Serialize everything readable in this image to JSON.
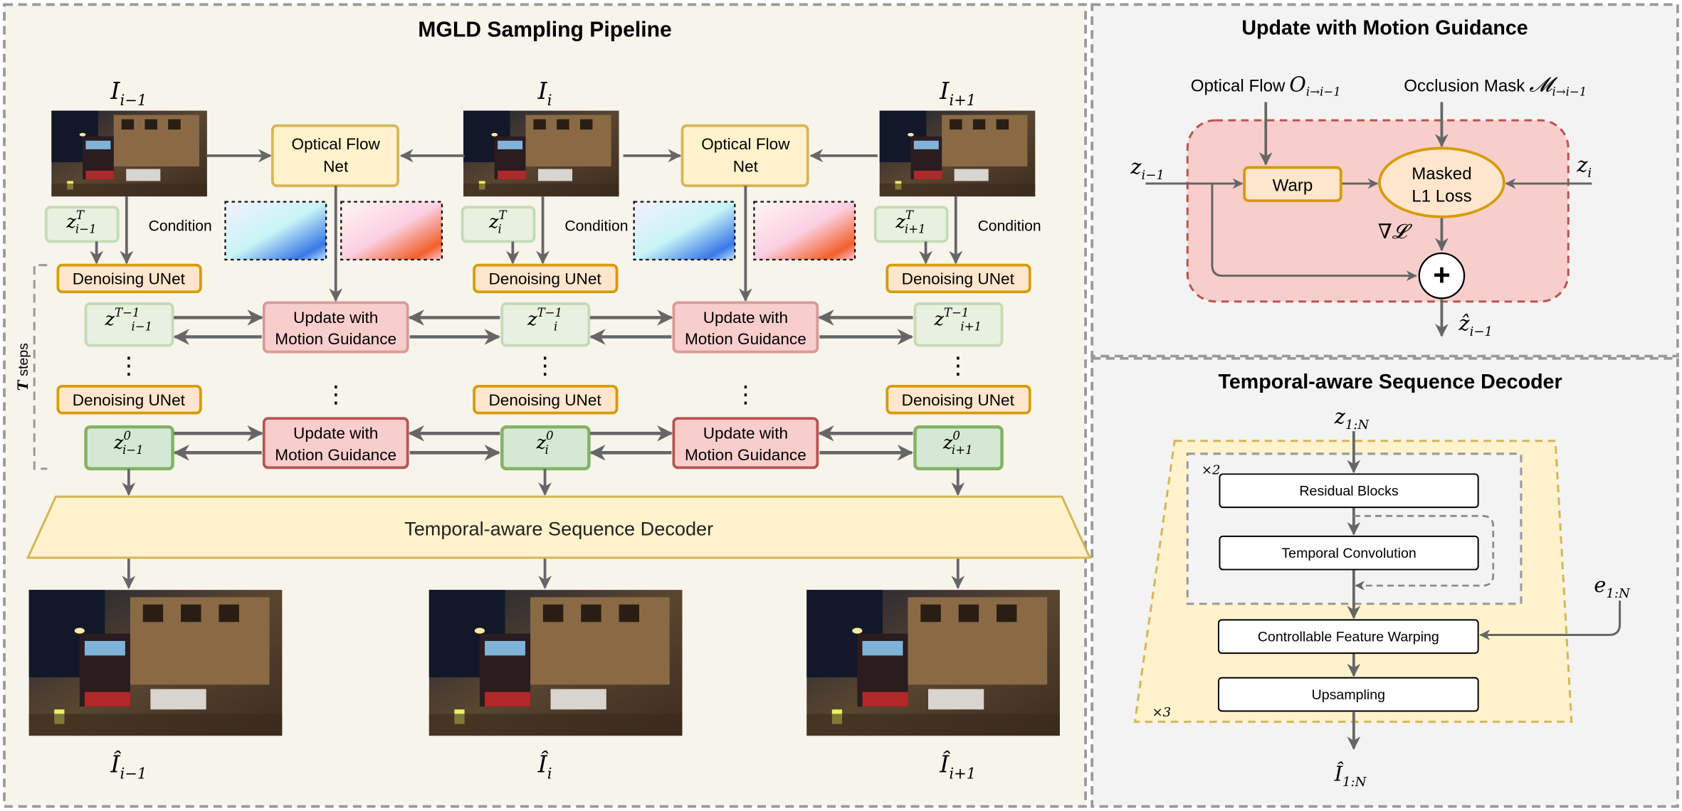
{
  "pipeline": {
    "title": "MGLD Sampling Pipeline",
    "frames": [
      {
        "label": "I",
        "sub": "i−1",
        "zT_sub": "i−1",
        "zT1_sub": "i−1",
        "z0_sub": "i−1",
        "out_sub": "i−1"
      },
      {
        "label": "I",
        "sub": "i",
        "zT_sub": "i",
        "zT1_sub": "i",
        "z0_sub": "i",
        "out_sub": "i"
      },
      {
        "label": "I",
        "sub": "i+1",
        "zT_sub": "i+1",
        "zT1_sub": "i+1",
        "z0_sub": "i+1",
        "out_sub": "i+1"
      }
    ],
    "z_letter": "z",
    "sup_T": "T",
    "sup_T1": "T−1",
    "sup_0": "0",
    "optical_flow_line1": "Optical Flow",
    "optical_flow_line2": "Net",
    "condition": "Condition",
    "denoising_unet": "Denoising UNet",
    "update_line1": "Update with",
    "update_line2": "Motion Guidance",
    "t_steps_T": "T",
    "t_steps_label": "steps",
    "ellipsis": "⋮",
    "decoder": "Temporal-aware Sequence Decoder",
    "out_letter": "Î"
  },
  "motion_guidance": {
    "title": "Update with Motion Guidance",
    "optical_flow_label": "Optical Flow",
    "optical_flow_sym": "O",
    "optical_flow_sub": "i→i−1",
    "occlusion_label": "Occlusion Mask",
    "occlusion_sym": "𝓜",
    "occlusion_sub": "i→i−1",
    "z_prev": "z",
    "z_prev_sub": "i−1",
    "z_cur": "z",
    "z_cur_sub": "i",
    "warp": "Warp",
    "loss_line1": "Masked",
    "loss_line2": "L1 Loss",
    "grad": "∇𝓛",
    "plus": "+",
    "out": "ẑ",
    "out_sub": "i−1"
  },
  "decoder": {
    "title": "Temporal-aware Sequence Decoder",
    "input": "z",
    "input_sub": "1:N",
    "repeat_inner": "×2",
    "repeat_outer": "×3",
    "blocks": [
      "Residual Blocks",
      "Temporal Convolution",
      "Controllable Feature Warping",
      "Upsampling"
    ],
    "event": "e",
    "event_sub": "1:N",
    "output": "Î",
    "output_sub": "1:N"
  },
  "colors": {
    "left_bg": "#f7f4ec",
    "right_bg": "#f3f3f3",
    "flow_box_fill": "#fff2cc",
    "flow_box_stroke": "#d6b656",
    "unet_fill": "#ffe6cc",
    "unet_stroke": "#d79b00",
    "update_fill": "#f8cecc",
    "update_stroke": "#b85450",
    "latent_fill": "#d5e8d4",
    "latent_stroke": "#82b366",
    "arrow": "#666666"
  }
}
